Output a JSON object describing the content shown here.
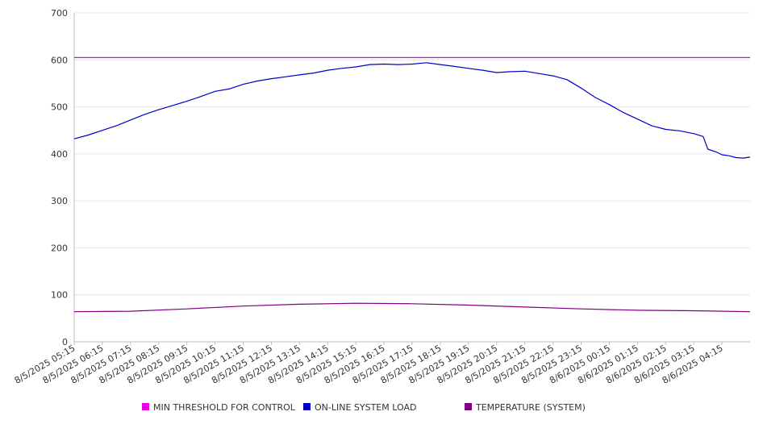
{
  "chart_data": {
    "type": "line",
    "ylim": [
      0,
      700
    ],
    "y_ticks": [
      0,
      100,
      200,
      300,
      400,
      500,
      600,
      700
    ],
    "x_ticks": [
      "8/5/2025 05:15",
      "8/5/2025 06:15",
      "8/5/2025 07:15",
      "8/5/2025 08:15",
      "8/5/2025 09:15",
      "8/5/2025 10:15",
      "8/5/2025 11:15",
      "8/5/2025 12:15",
      "8/5/2025 13:15",
      "8/5/2025 14:15",
      "8/5/2025 15:15",
      "8/5/2025 16:15",
      "8/5/2025 17:15",
      "8/5/2025 18:15",
      "8/5/2025 19:15",
      "8/5/2025 20:15",
      "8/5/2025 21:15",
      "8/5/2025 22:15",
      "8/5/2025 23:15",
      "8/6/2025 00:15",
      "8/6/2025 01:15",
      "8/6/2025 02:15",
      "8/6/2025 03:15",
      "8/6/2025 04:15"
    ],
    "x_start": "8/5/2025 05:15",
    "x_end": "8/6/2025 05:15",
    "grid": true,
    "legend_position": "bottom",
    "series": [
      {
        "name": "MIN THRESHOLD FOR CONTROL",
        "color": "#e600e6",
        "points": [
          [
            "8/5/2025 05:15",
            605
          ],
          [
            "8/6/2025 05:15",
            605
          ]
        ]
      },
      {
        "name": "ON-LINE SYSTEM LOAD",
        "color": "#0000cc",
        "points": [
          [
            "8/5/2025 05:15",
            432
          ],
          [
            "8/5/2025 05:45",
            440
          ],
          [
            "8/5/2025 06:15",
            450
          ],
          [
            "8/5/2025 06:45",
            460
          ],
          [
            "8/5/2025 07:15",
            472
          ],
          [
            "8/5/2025 07:45",
            484
          ],
          [
            "8/5/2025 08:15",
            494
          ],
          [
            "8/5/2025 08:45",
            503
          ],
          [
            "8/5/2025 09:15",
            512
          ],
          [
            "8/5/2025 09:45",
            522
          ],
          [
            "8/5/2025 10:15",
            533
          ],
          [
            "8/5/2025 10:45",
            538
          ],
          [
            "8/5/2025 11:15",
            548
          ],
          [
            "8/5/2025 11:45",
            555
          ],
          [
            "8/5/2025 12:15",
            560
          ],
          [
            "8/5/2025 12:45",
            564
          ],
          [
            "8/5/2025 13:15",
            568
          ],
          [
            "8/5/2025 13:45",
            572
          ],
          [
            "8/5/2025 14:15",
            578
          ],
          [
            "8/5/2025 14:45",
            582
          ],
          [
            "8/5/2025 15:15",
            585
          ],
          [
            "8/5/2025 15:45",
            590
          ],
          [
            "8/5/2025 16:15",
            591
          ],
          [
            "8/5/2025 16:45",
            590
          ],
          [
            "8/5/2025 17:15",
            591
          ],
          [
            "8/5/2025 17:45",
            594
          ],
          [
            "8/5/2025 18:15",
            590
          ],
          [
            "8/5/2025 18:45",
            586
          ],
          [
            "8/5/2025 19:15",
            582
          ],
          [
            "8/5/2025 19:45",
            578
          ],
          [
            "8/5/2025 20:15",
            573
          ],
          [
            "8/5/2025 20:45",
            575
          ],
          [
            "8/5/2025 21:15",
            576
          ],
          [
            "8/5/2025 21:45",
            571
          ],
          [
            "8/5/2025 22:15",
            566
          ],
          [
            "8/5/2025 22:45",
            558
          ],
          [
            "8/5/2025 23:15",
            540
          ],
          [
            "8/5/2025 23:45",
            520
          ],
          [
            "8/6/2025 00:15",
            505
          ],
          [
            "8/6/2025 00:45",
            488
          ],
          [
            "8/6/2025 01:15",
            474
          ],
          [
            "8/6/2025 01:45",
            460
          ],
          [
            "8/6/2025 02:15",
            452
          ],
          [
            "8/6/2025 02:45",
            449
          ],
          [
            "8/6/2025 03:15",
            443
          ],
          [
            "8/6/2025 03:35",
            437
          ],
          [
            "8/6/2025 03:45",
            410
          ],
          [
            "8/6/2025 04:05",
            403
          ],
          [
            "8/6/2025 04:15",
            398
          ],
          [
            "8/6/2025 04:30",
            396
          ],
          [
            "8/6/2025 04:45",
            392
          ],
          [
            "8/6/2025 05:00",
            391
          ],
          [
            "8/6/2025 05:15",
            393
          ]
        ]
      },
      {
        "name": "TEMPERATURE (SYSTEM)",
        "color": "#800080",
        "points": [
          [
            "8/5/2025 05:15",
            64
          ],
          [
            "8/5/2025 07:15",
            65
          ],
          [
            "8/5/2025 09:15",
            70
          ],
          [
            "8/5/2025 11:15",
            76
          ],
          [
            "8/5/2025 13:15",
            80
          ],
          [
            "8/5/2025 15:15",
            82
          ],
          [
            "8/5/2025 17:15",
            81
          ],
          [
            "8/5/2025 19:15",
            78
          ],
          [
            "8/5/2025 21:15",
            74
          ],
          [
            "8/5/2025 23:15",
            70
          ],
          [
            "8/6/2025 01:15",
            67
          ],
          [
            "8/6/2025 03:15",
            66
          ],
          [
            "8/6/2025 05:15",
            64
          ]
        ]
      }
    ]
  }
}
